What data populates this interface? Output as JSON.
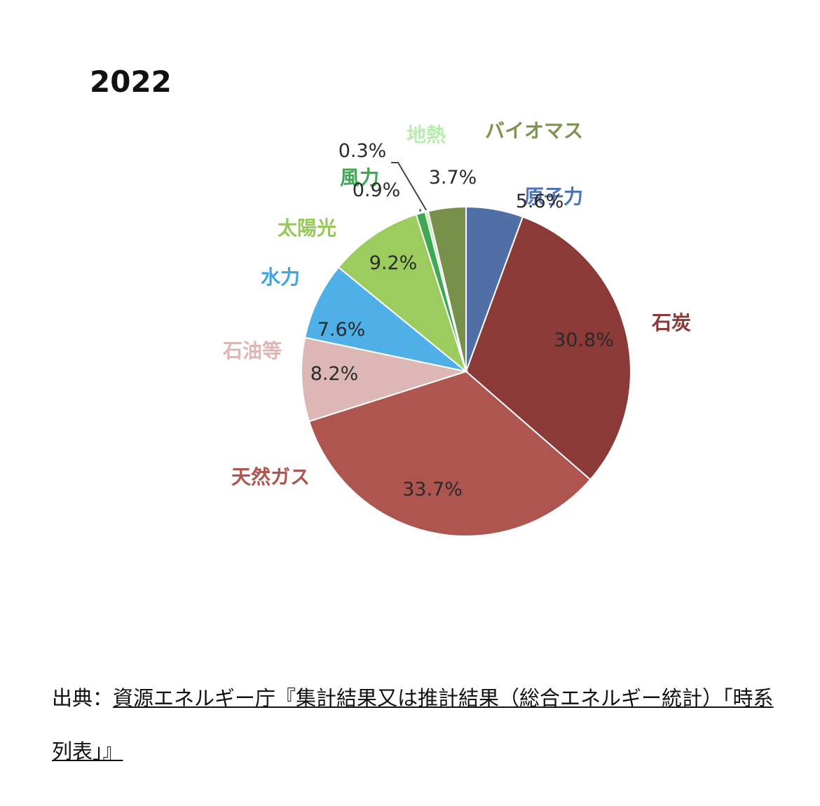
{
  "chart_data": {
    "type": "pie",
    "title": "2022",
    "slices": [
      {
        "label": "原子力",
        "value": 5.6,
        "pct_text": "5.6%",
        "color": "#4f6fa6"
      },
      {
        "label": "石炭",
        "value": 30.8,
        "pct_text": "30.8%",
        "color": "#8b3a38"
      },
      {
        "label": "天然ガス",
        "value": 33.7,
        "pct_text": "33.7%",
        "color": "#ae5550"
      },
      {
        "label": "石油等",
        "value": 8.2,
        "pct_text": "8.2%",
        "color": "#ddb7b6"
      },
      {
        "label": "水力",
        "value": 7.6,
        "pct_text": "7.6%",
        "color": "#4fb0e8"
      },
      {
        "label": "太陽光",
        "value": 9.2,
        "pct_text": "9.2%",
        "color": "#9ccc5e"
      },
      {
        "label": "風力",
        "value": 0.9,
        "pct_text": "0.9%",
        "color": "#3ea852"
      },
      {
        "label": "地熱",
        "value": 0.3,
        "pct_text": "0.3%",
        "color": "#b8ecb0"
      },
      {
        "label": "バイオマス",
        "value": 3.7,
        "pct_text": "3.7%",
        "color": "#78914a"
      }
    ],
    "label_colors": {
      "原子力": "#4f73b6",
      "石炭": "#8b3a38",
      "天然ガス": "#ae5550",
      "石油等": "#ddb7b6",
      "水力": "#3aa6e6",
      "太陽光": "#98c85a",
      "風力": "#3ea852",
      "地熱": "#b8ecb0",
      "バイオマス": "#7d9550"
    }
  },
  "source": {
    "prefix": "出典：",
    "link_text": "資源エネルギー庁『集計結果又は推計結果（総合エネルギー統計）「時系列表」』"
  }
}
